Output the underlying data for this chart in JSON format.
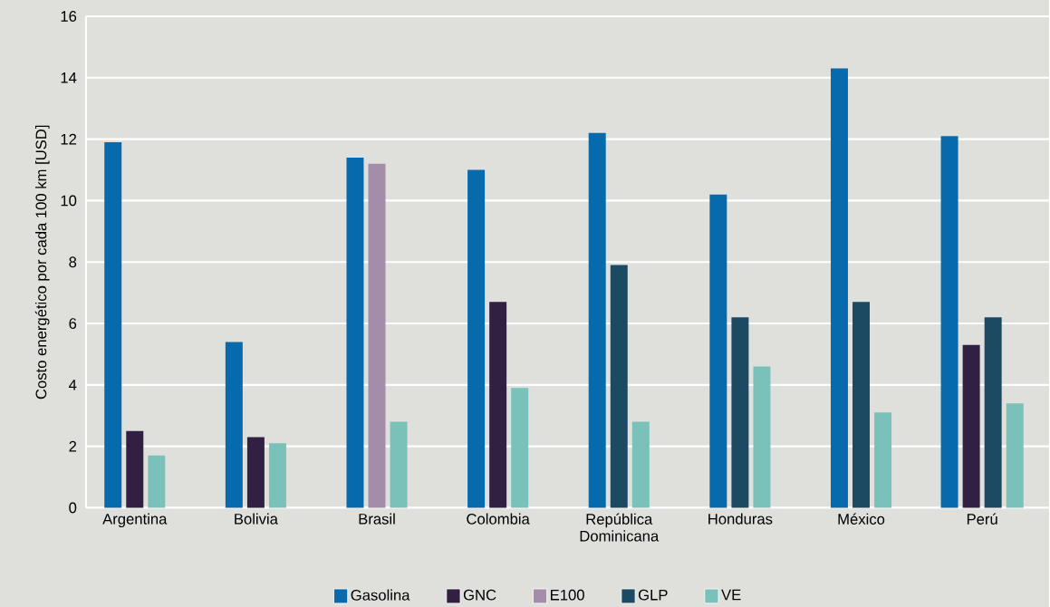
{
  "chart_data": {
    "type": "bar",
    "ylabel": "Costo energético por cada 100 km [USD]",
    "categories": [
      "Argentina",
      "Bolivia",
      "Brasil",
      "Colombia",
      "República Dominicana",
      "Honduras",
      "México",
      "Perú"
    ],
    "series": [
      {
        "name": "Gasolina",
        "color": "#066aad",
        "values": [
          11.9,
          5.4,
          11.4,
          11.0,
          12.2,
          10.2,
          14.3,
          12.1
        ]
      },
      {
        "name": "GNC",
        "color": "#312042",
        "values": [
          2.5,
          2.3,
          null,
          6.7,
          null,
          null,
          null,
          5.3
        ]
      },
      {
        "name": "E100",
        "color": "#a48dab",
        "values": [
          null,
          null,
          11.2,
          null,
          null,
          null,
          null,
          null
        ]
      },
      {
        "name": "GLP",
        "color": "#1c4a63",
        "values": [
          null,
          null,
          null,
          null,
          7.9,
          6.2,
          6.7,
          6.2
        ]
      },
      {
        "name": "VE",
        "color": "#7ac1b9",
        "values": [
          1.7,
          2.1,
          2.8,
          3.9,
          2.8,
          4.6,
          3.1,
          3.4
        ]
      }
    ],
    "ylim": [
      0,
      16
    ],
    "yticks": [
      0,
      2,
      4,
      6,
      8,
      10,
      12,
      14,
      16
    ],
    "grid": "y",
    "legend": "bottom"
  }
}
